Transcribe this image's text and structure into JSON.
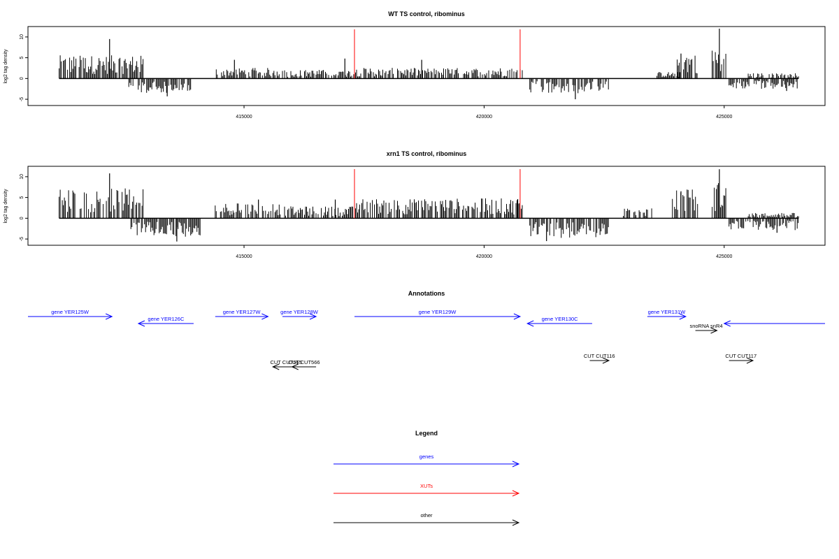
{
  "chart_data": [
    {
      "type": "bar",
      "title": "WT TS control, ribominus",
      "xlabel": "",
      "ylabel": "log2 tag density",
      "xlim": [
        410500,
        427100
      ],
      "ylim": [
        -6,
        12
      ],
      "xticks": [
        "415000",
        "420000",
        "425000"
      ],
      "yticks": [
        "10",
        "5",
        "0",
        "-5"
      ],
      "marker_lines": [
        417300,
        420750
      ],
      "segments": [
        {
          "start": 411150,
          "end": 412900,
          "strand": "+",
          "level": 3.5,
          "spikes": [
            [
              412200,
              9.5
            ]
          ]
        },
        {
          "start": 412600,
          "end": 413900,
          "strand": "-",
          "level": 2.2,
          "spikes": [
            [
              413400,
              4.3
            ]
          ]
        },
        {
          "start": 414400,
          "end": 415800,
          "strand": "+",
          "level": 1.6,
          "spikes": [
            [
              414800,
              4.5
            ]
          ]
        },
        {
          "start": 415800,
          "end": 417300,
          "strand": "+",
          "level": 1.3,
          "spikes": [
            [
              417100,
              4.8
            ]
          ]
        },
        {
          "start": 417300,
          "end": 420800,
          "strand": "+",
          "level": 1.6,
          "spikes": [
            [
              418700,
              4.5
            ]
          ]
        },
        {
          "start": 420950,
          "end": 422600,
          "strand": "-",
          "level": 2.3,
          "spikes": [
            [
              421900,
              5.0
            ]
          ]
        },
        {
          "start": 423600,
          "end": 424100,
          "strand": "+",
          "level": 1.0,
          "spikes": []
        },
        {
          "start": 424000,
          "end": 424450,
          "strand": "+",
          "level": 4.0,
          "spikes": [
            [
              424100,
              6.0
            ]
          ]
        },
        {
          "start": 424750,
          "end": 425050,
          "strand": "+",
          "level": 4.5,
          "spikes": [
            [
              424900,
              12.0
            ]
          ]
        },
        {
          "start": 425100,
          "end": 426550,
          "strand": "-",
          "level": 1.6,
          "spikes": [
            [
              426300,
              3.0
            ]
          ]
        },
        {
          "start": 425500,
          "end": 426550,
          "strand": "+",
          "level": 0.8,
          "spikes": []
        }
      ]
    },
    {
      "type": "bar",
      "title": "xrn1 TS control, ribominus",
      "xlabel": "",
      "ylabel": "log2 tag density",
      "xlim": [
        410500,
        427100
      ],
      "ylim": [
        -6,
        12
      ],
      "xticks": [
        "415000",
        "420000",
        "425000"
      ],
      "yticks": [
        "10",
        "5",
        "0",
        "-5"
      ],
      "marker_lines": [
        417300,
        420750
      ],
      "segments": [
        {
          "start": 411150,
          "end": 412900,
          "strand": "+",
          "level": 4.5,
          "spikes": [
            [
              412200,
              10.8
            ]
          ]
        },
        {
          "start": 412600,
          "end": 414100,
          "strand": "-",
          "level": 2.8,
          "spikes": [
            [
              413600,
              5.6
            ]
          ]
        },
        {
          "start": 414400,
          "end": 415800,
          "strand": "+",
          "level": 2.3,
          "spikes": [
            [
              415300,
              4.5
            ]
          ]
        },
        {
          "start": 415800,
          "end": 417300,
          "strand": "+",
          "level": 1.8,
          "spikes": [
            [
              416900,
              4.5
            ]
          ]
        },
        {
          "start": 417300,
          "end": 420800,
          "strand": "+",
          "level": 3.0,
          "spikes": [
            [
              420700,
              4.6
            ]
          ]
        },
        {
          "start": 420950,
          "end": 422600,
          "strand": "-",
          "level": 3.0,
          "spikes": [
            [
              421300,
              5.5
            ]
          ]
        },
        {
          "start": 422900,
          "end": 423500,
          "strand": "+",
          "level": 1.5,
          "spikes": []
        },
        {
          "start": 423900,
          "end": 424450,
          "strand": "+",
          "level": 4.5,
          "spikes": [
            [
              424100,
              6.5
            ]
          ]
        },
        {
          "start": 424750,
          "end": 425050,
          "strand": "+",
          "level": 5.5,
          "spikes": [
            [
              424900,
              11.8
            ]
          ]
        },
        {
          "start": 425100,
          "end": 426550,
          "strand": "-",
          "level": 1.8,
          "spikes": [
            [
              426100,
              3.5
            ]
          ]
        },
        {
          "start": 425500,
          "end": 426550,
          "strand": "+",
          "level": 0.8,
          "spikes": []
        }
      ]
    },
    {
      "type": "gene-annotation",
      "title": "Annotations",
      "features": [
        {
          "label": "gene YER125W",
          "strand": "+",
          "start": 410500,
          "end": 412250,
          "row": 0,
          "class": "genes"
        },
        {
          "label": "gene YER126C",
          "strand": "-",
          "start": 412800,
          "end": 413950,
          "row": 1,
          "class": "genes"
        },
        {
          "label": "gene YER127W",
          "strand": "+",
          "start": 414400,
          "end": 415500,
          "row": 0,
          "class": "genes"
        },
        {
          "label": "gene YER128W",
          "strand": "+",
          "start": 415800,
          "end": 416500,
          "row": 0,
          "class": "genes"
        },
        {
          "label": "gene YER129W",
          "strand": "+",
          "start": 417300,
          "end": 420750,
          "row": 0,
          "class": "genes"
        },
        {
          "label": "gene YER130C",
          "strand": "-",
          "start": 420900,
          "end": 422250,
          "row": 1,
          "class": "genes"
        },
        {
          "label": "gene YER131W",
          "strand": "+",
          "start": 423400,
          "end": 424200,
          "row": 0,
          "class": "genes"
        },
        {
          "label": "snoRNA snR4",
          "strand": "+",
          "start": 424400,
          "end": 424850,
          "row": 2,
          "class": "other"
        },
        {
          "label": "",
          "strand": "-",
          "start": 425000,
          "end": 427100,
          "row": 1,
          "class": "genes"
        },
        {
          "label": "CUT CUT565",
          "strand": "-",
          "start": 415600,
          "end": 416150,
          "row": 3,
          "class": "other"
        },
        {
          "label": "CUT CUT566",
          "strand": "-",
          "start": 416000,
          "end": 416500,
          "row": 3,
          "class": "other"
        },
        {
          "label": "CUT CUT116",
          "strand": "+",
          "start": 422200,
          "end": 422600,
          "row": 4,
          "class": "other"
        },
        {
          "label": "CUT CUT117",
          "strand": "+",
          "start": 425100,
          "end": 425600,
          "row": 4,
          "class": "other"
        }
      ]
    },
    {
      "type": "legend",
      "title": "Legend",
      "entries": [
        {
          "label": "genes",
          "color": "#0000ff"
        },
        {
          "label": "XUTs",
          "color": "#ff0000"
        },
        {
          "label": "other",
          "color": "#000000"
        }
      ]
    }
  ],
  "colors": {
    "genes": "#0000ff",
    "xuts": "#ff0000",
    "other": "#000000",
    "signal": "#000000"
  }
}
